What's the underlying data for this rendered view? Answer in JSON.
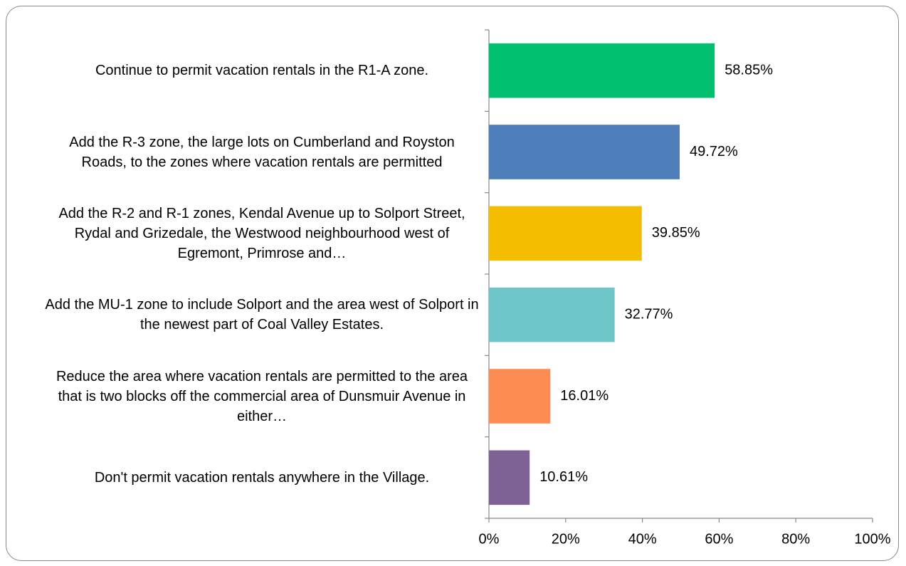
{
  "chart_data": {
    "type": "bar",
    "orientation": "horizontal",
    "categories": [
      "Continue to permit vacation rentals in the R1-A zone.",
      "Add the R-3 zone, the large lots on Cumberland and Royston Roads, to the zones where vacation rentals are permitted",
      "Add the R-2 and R-1 zones, Kendal Avenue up to Solport Street, Rydal and Grizedale, the Westwood neighbourhood west of Egremont, Primrose and…",
      "Add the MU-1 zone to include Solport and the area west of Solport in the newest part of Coal Valley Estates.",
      "Reduce the area where vacation rentals are permitted to the area that is two blocks off the commercial area of Dunsmuir Avenue in either…",
      "Don't permit vacation rentals anywhere in the Village."
    ],
    "values": [
      58.85,
      49.72,
      39.85,
      32.77,
      16.01,
      10.61
    ],
    "value_labels": [
      "58.85%",
      "49.72%",
      "39.85%",
      "32.77%",
      "16.01%",
      "10.61%"
    ],
    "colors": [
      "#00c06f",
      "#4f7fba",
      "#f5bd00",
      "#6ec6c9",
      "#fd8c52",
      "#7f6295"
    ],
    "xlim": [
      0,
      100
    ],
    "xticks": [
      {
        "value": 0,
        "label": "0%"
      },
      {
        "value": 20,
        "label": "20%"
      },
      {
        "value": 40,
        "label": "40%"
      },
      {
        "value": 60,
        "label": "60%"
      },
      {
        "value": 80,
        "label": "80%"
      },
      {
        "value": 100,
        "label": "100%"
      }
    ],
    "grid": false
  }
}
